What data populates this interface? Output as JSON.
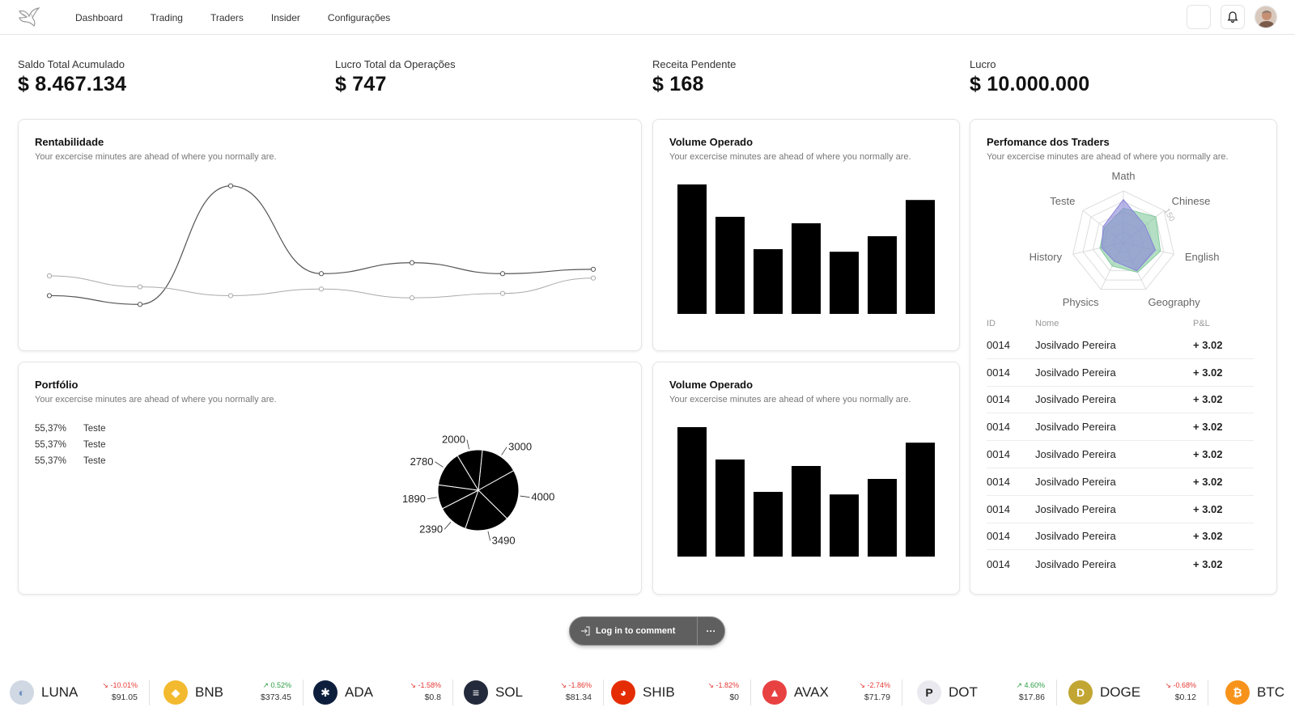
{
  "nav": {
    "links": [
      "Dashboard",
      "Trading",
      "Traders",
      "Insider",
      "Configurações"
    ]
  },
  "stats": [
    {
      "label": "Saldo Total Acumulado",
      "value": "$ 8.467.134"
    },
    {
      "label": "Lucro Total da Operações",
      "value": "$ 747"
    },
    {
      "label": "Receita Pendente",
      "value": "$ 168"
    },
    {
      "label": "Lucro",
      "value": "$ 10.000.000"
    }
  ],
  "cards": {
    "rentabilidade": {
      "title": "Rentabilidade",
      "subtitle": "Your excercise minutes are ahead of where you normally are."
    },
    "volume1": {
      "title": "Volume Operado",
      "subtitle": "Your excercise minutes are ahead of where you normally are."
    },
    "volume2": {
      "title": "Volume Operado",
      "subtitle": "Your excercise minutes are ahead of where you normally are."
    },
    "portfolio": {
      "title": "Portfólio",
      "subtitle": "Your excercise minutes are ahead of where you normally are."
    },
    "traders": {
      "title": "Perfomance dos Traders",
      "subtitle": "Your excercise minutes are ahead of where you normally are."
    }
  },
  "portfolio_legend": [
    {
      "pct": "55,37%",
      "label": "Teste"
    },
    {
      "pct": "55,37%",
      "label": "Teste"
    },
    {
      "pct": "55,37%",
      "label": "Teste"
    }
  ],
  "traders_table": {
    "headers": {
      "id": "ID",
      "name": "Nome",
      "pl": "P&L"
    },
    "rows": [
      {
        "id": "0014",
        "name": "Josilvado Pereira",
        "pl": "+ 3.02"
      },
      {
        "id": "0014",
        "name": "Josilvado Pereira",
        "pl": "+ 3.02"
      },
      {
        "id": "0014",
        "name": "Josilvado Pereira",
        "pl": "+ 3.02"
      },
      {
        "id": "0014",
        "name": "Josilvado Pereira",
        "pl": "+ 3.02"
      },
      {
        "id": "0014",
        "name": "Josilvado Pereira",
        "pl": "+ 3.02"
      },
      {
        "id": "0014",
        "name": "Josilvado Pereira",
        "pl": "+ 3.02"
      },
      {
        "id": "0014",
        "name": "Josilvado Pereira",
        "pl": "+ 3.02"
      },
      {
        "id": "0014",
        "name": "Josilvado Pereira",
        "pl": "+ 3.02"
      },
      {
        "id": "0014",
        "name": "Josilvado Pereira",
        "pl": "+ 3.02"
      }
    ]
  },
  "login": {
    "label": "Log in to comment",
    "more": "···"
  },
  "ticker": [
    {
      "symbol": "LUNA",
      "change": "↘ -10.01%",
      "dir": "down",
      "price": "$91.05",
      "color": "#cfd8e3",
      "icon": "luna-icon"
    },
    {
      "symbol": "BNB",
      "change": "↗ 0.52%",
      "dir": "up",
      "price": "$373.45",
      "color": "#f3ba2f",
      "icon": "bnb-icon"
    },
    {
      "symbol": "ADA",
      "change": "↘ -1.58%",
      "dir": "down",
      "price": "$0.8",
      "color": "#0d1e3d",
      "icon": "ada-icon"
    },
    {
      "symbol": "SOL",
      "change": "↘ -1.86%",
      "dir": "down",
      "price": "$81.34",
      "color": "#232a3b",
      "icon": "sol-icon"
    },
    {
      "symbol": "SHIB",
      "change": "↘ -1.82%",
      "dir": "down",
      "price": "$0",
      "color": "#e42d04",
      "icon": "shib-icon"
    },
    {
      "symbol": "AVAX",
      "change": "↘ -2.74%",
      "dir": "down",
      "price": "$71.79",
      "color": "#e84142",
      "icon": "avax-icon"
    },
    {
      "symbol": "DOT",
      "change": "↗ 4.60%",
      "dir": "up",
      "price": "$17.86",
      "color": "#e9e9ef",
      "icon": "dot-icon"
    },
    {
      "symbol": "DOGE",
      "change": "↘ -0.68%",
      "dir": "down",
      "price": "$0.12",
      "color": "#c2a633",
      "icon": "doge-icon"
    },
    {
      "symbol": "BTC",
      "change": "",
      "dir": "up",
      "price": "",
      "color": "#f7931a",
      "icon": "btc-icon"
    }
  ],
  "chart_data": [
    {
      "type": "line",
      "x": [
        1,
        2,
        3,
        4,
        5,
        6,
        7
      ],
      "series": [
        {
          "values": [
            42,
            38,
            92,
            52,
            57,
            52,
            54
          ]
        },
        {
          "values": [
            51,
            46,
            42,
            45,
            41,
            43,
            50
          ]
        }
      ],
      "title": "Rentabilidade",
      "xlabel": "",
      "ylabel": "",
      "ylim": [
        30,
        100
      ],
      "grid": false
    },
    {
      "type": "bar",
      "values": [
        100,
        75,
        50,
        70,
        48,
        60,
        88
      ],
      "title": "Volume Operado",
      "xlabel": "",
      "ylabel": "",
      "ylim": [
        0,
        100
      ],
      "grid": false
    },
    {
      "type": "bar",
      "values": [
        100,
        75,
        50,
        70,
        48,
        60,
        88
      ],
      "title": "Volume Operado",
      "xlabel": "",
      "ylabel": "",
      "ylim": [
        0,
        100
      ],
      "grid": false
    },
    {
      "type": "pie",
      "categories": [
        "3000",
        "4000",
        "3490",
        "2390",
        "1890",
        "2780",
        "2000"
      ],
      "values": [
        3000,
        4000,
        3490,
        2390,
        1890,
        2780,
        2000
      ],
      "title": "Portfólio"
    },
    {
      "type": "radar",
      "categories": [
        "Math",
        "Chinese",
        "English",
        "Geography",
        "Physics",
        "History",
        "Teste"
      ],
      "tick_labels": [
        "150"
      ],
      "series": [
        {
          "color": "#82ca9d",
          "values": [
            100,
            120,
            110,
            95,
            75,
            70,
            70
          ]
        },
        {
          "color": "#8884d8",
          "values": [
            125,
            80,
            95,
            90,
            60,
            65,
            75
          ]
        }
      ],
      "rmax": 150,
      "title": "Perfomance dos Traders"
    }
  ]
}
